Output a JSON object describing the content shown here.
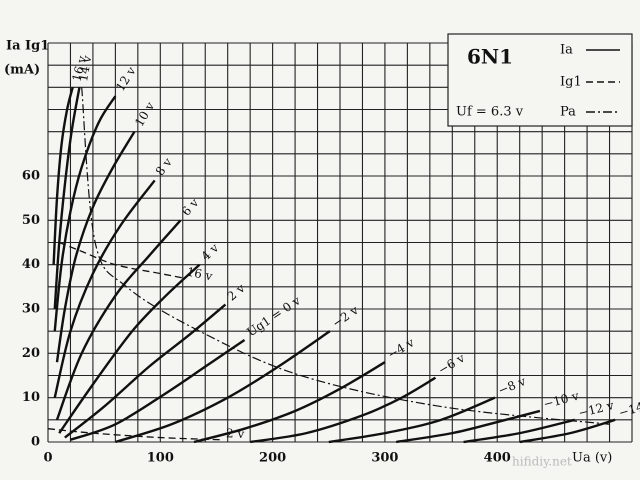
{
  "chart_data": {
    "type": "line",
    "y_title": "Ia Ig1",
    "y_unit": "(mA)",
    "x_title": "Ua (v)",
    "tube": "6N1",
    "heater": "Uf = 6.3 v",
    "watermark": "hifidiy.net",
    "xlim": [
      0,
      520
    ],
    "ylim": [
      0,
      90
    ],
    "xticks": [
      0,
      100,
      200,
      300,
      400
    ],
    "yticks": [
      0,
      10,
      20,
      30,
      40,
      50,
      60
    ],
    "xgrid": [
      0,
      20,
      40,
      60,
      80,
      100,
      120,
      140,
      160,
      180,
      200,
      220,
      240,
      260,
      280,
      300,
      320,
      340,
      360,
      380,
      400,
      420,
      440,
      460,
      480,
      500,
      520
    ],
    "ygrid": [
      0,
      5,
      10,
      15,
      20,
      25,
      30,
      35,
      40,
      45,
      50,
      55,
      60,
      65,
      70,
      75,
      80,
      85,
      90
    ],
    "grid": true,
    "color": "#111",
    "legend": [
      {
        "name": "Ia",
        "style": "solid"
      },
      {
        "name": "Ig1",
        "style": "dashed"
      },
      {
        "name": "Pa",
        "style": "dashdot"
      }
    ],
    "series": [
      {
        "label": "16 v",
        "style": "solid",
        "x": [
          5,
          8,
          12,
          17,
          22
        ],
        "values": [
          40,
          55,
          67,
          75,
          80
        ]
      },
      {
        "label": "14 v",
        "style": "solid",
        "x": [
          6,
          10,
          15,
          21,
          28
        ],
        "values": [
          30,
          45,
          58,
          70,
          80
        ]
      },
      {
        "label": "12 v",
        "style": "solid",
        "x": [
          6,
          12,
          20,
          30,
          45,
          60
        ],
        "values": [
          25,
          40,
          52,
          62,
          72,
          78
        ]
      },
      {
        "label": "10 v",
        "style": "solid",
        "x": [
          8,
          15,
          25,
          40,
          58,
          77
        ],
        "values": [
          18,
          30,
          42,
          53,
          62,
          70
        ]
      },
      {
        "label": "8 v",
        "style": "solid",
        "x": [
          6,
          20,
          40,
          65,
          95
        ],
        "values": [
          10,
          25,
          38,
          49,
          59
        ]
      },
      {
        "label": "6 v",
        "style": "solid",
        "x": [
          8,
          30,
          60,
          90,
          118
        ],
        "values": [
          5,
          20,
          33,
          42,
          50
        ]
      },
      {
        "label": "4 v",
        "style": "solid",
        "x": [
          10,
          40,
          75,
          105,
          135
        ],
        "values": [
          2,
          13,
          25,
          33,
          40
        ]
      },
      {
        "label": "2 v",
        "style": "solid",
        "x": [
          15,
          50,
          90,
          125,
          158
        ],
        "values": [
          1,
          8,
          17,
          24,
          31
        ]
      },
      {
        "label": "Ug1 = 0 v",
        "style": "solid",
        "x": [
          20,
          60,
          105,
          140,
          175
        ],
        "values": [
          0.5,
          4,
          11,
          17,
          23
        ]
      },
      {
        "label": "−2 v",
        "style": "solid",
        "x": [
          60,
          110,
          160,
          205,
          251
        ],
        "values": [
          0,
          4,
          10,
          17,
          25
        ]
      },
      {
        "label": "−4 v",
        "style": "solid",
        "x": [
          130,
          175,
          220,
          260,
          300
        ],
        "values": [
          0,
          3,
          7,
          12,
          18
        ]
      },
      {
        "label": "−6 v",
        "style": "solid",
        "x": [
          180,
          230,
          280,
          315,
          345
        ],
        "values": [
          0,
          2,
          6,
          10,
          14.5
        ]
      },
      {
        "label": "−8 v",
        "style": "solid",
        "x": [
          250,
          300,
          350,
          398
        ],
        "values": [
          0,
          2,
          5,
          10
        ]
      },
      {
        "label": "−10 v",
        "style": "solid",
        "x": [
          310,
          360,
          400,
          438
        ],
        "values": [
          0,
          2,
          4.5,
          7
        ]
      },
      {
        "label": "−12 v",
        "style": "solid",
        "x": [
          370,
          420,
          469
        ],
        "values": [
          0,
          2,
          5
        ]
      },
      {
        "label": "−14 v",
        "style": "solid",
        "x": [
          420,
          465,
          505
        ],
        "values": [
          0,
          2,
          5
        ]
      },
      {
        "label": "16 v",
        "style": "dashed",
        "x": [
          10,
          30,
          60,
          100,
          120
        ],
        "values": [
          45,
          43,
          40,
          38,
          37
        ]
      },
      {
        "label": "2 v",
        "style": "dashed",
        "x": [
          0,
          40,
          100,
          155
        ],
        "values": [
          3,
          2,
          1,
          0.5
        ]
      },
      {
        "style": "dashdot",
        "x": [
          30,
          42,
          70,
          135,
          225,
          350,
          500
        ],
        "values": [
          80,
          45,
          35,
          25,
          15,
          8,
          4
        ]
      }
    ]
  }
}
